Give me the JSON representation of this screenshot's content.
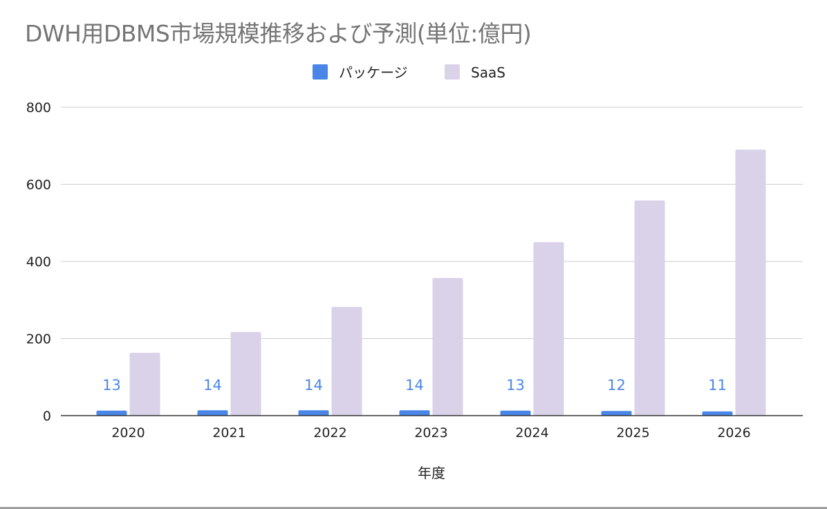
{
  "chart_data": {
    "type": "bar",
    "title": "DWH用DBMS市場規模推移および予測(単位:億円)",
    "xlabel": "年度",
    "ylabel": "",
    "categories": [
      "2020",
      "2021",
      "2022",
      "2023",
      "2024",
      "2025",
      "2026"
    ],
    "series": [
      {
        "name": "パッケージ",
        "color": "#4a86e8",
        "values": [
          13,
          14,
          14,
          14,
          13,
          12,
          11
        ],
        "data_labels": true
      },
      {
        "name": "SaaS",
        "color": "#d9d2e9",
        "values": [
          163,
          217,
          282,
          357,
          450,
          558,
          690
        ],
        "data_labels": false
      }
    ],
    "ylim": [
      0,
      800
    ],
    "yticks": [
      0,
      200,
      400,
      600,
      800
    ],
    "grid": true,
    "legend_position": "top-center"
  }
}
